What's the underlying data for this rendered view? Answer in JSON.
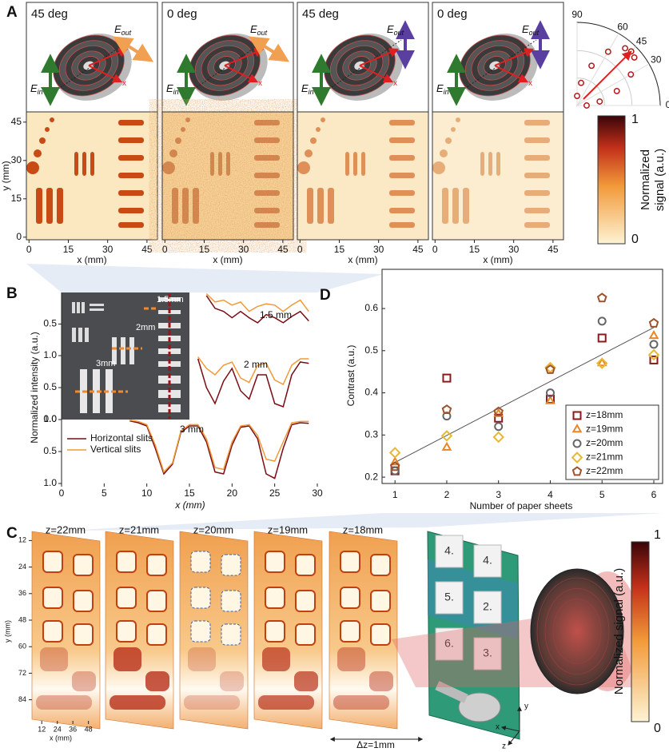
{
  "panel_labels": [
    "A",
    "B",
    "C",
    "D"
  ],
  "panel_a": {
    "maps": [
      {
        "label": "45 deg"
      },
      {
        "label": "0 deg"
      },
      {
        "label": "45 deg"
      },
      {
        "label": "0 deg"
      }
    ],
    "xlim": [
      -1,
      49
    ],
    "ylim": [
      -1,
      49
    ],
    "xticks": [
      0,
      15,
      30,
      45
    ],
    "yticks": [
      0,
      15,
      30,
      45
    ],
    "xlabel": "x (mm)",
    "ylabel": "y (mm)",
    "field": {
      "E": "E",
      "out": "out",
      "in": "in",
      "x": "x"
    },
    "colorbar": {
      "ticks": [
        0,
        1
      ],
      "label": [
        "Normalized",
        "signal (a.u.)"
      ]
    }
  },
  "panel_b": {
    "inset_labels": [
      "1.5mm",
      "2mm",
      "3mm"
    ]
  },
  "panel_c": {
    "slices": [
      "z=22mm",
      "z=21mm",
      "z=20mm",
      "z=19mm",
      "z=18mm"
    ],
    "yticks": [
      12,
      24,
      36,
      48,
      60,
      72,
      84
    ],
    "xticks": [
      12,
      24,
      36,
      48
    ],
    "ylim": [
      5,
      91
    ],
    "xlim": [
      2,
      55
    ],
    "xlabel": "x (mm)",
    "ylabel": "y (mm)",
    "dz": "Δz=1mm",
    "keys": [
      "4.",
      "4.",
      "5.",
      "2.",
      "6.",
      "3."
    ],
    "axes": [
      "x",
      "y",
      "z"
    ],
    "colorbar": {
      "ticks": [
        0,
        1
      ],
      "label": "Normalized signal (a.u.)"
    }
  },
  "chart_data": [
    {
      "type": "line",
      "title": "3 mm",
      "ylabel": "Normalized intensity (a.u.)",
      "xlabel": "x (mm)",
      "xlim": [
        0,
        30
      ],
      "xticks": [
        0,
        5,
        10,
        15,
        20,
        25,
        30
      ],
      "ylim": [
        0,
        1
      ],
      "yticks": [
        {
          "value": 0,
          "label": "0.0"
        },
        0.5,
        {
          "value": 1,
          "label": "1.0"
        }
      ],
      "x": [
        8,
        9,
        10,
        11,
        12,
        13,
        14,
        15,
        16,
        17,
        18,
        19,
        20,
        21,
        22,
        23,
        24,
        25,
        26,
        27,
        28,
        29
      ],
      "legend": "upper left",
      "series": [
        {
          "name": "Horizontal slits",
          "color": "#7a0c14",
          "values": [
            0.02,
            0.05,
            0.1,
            0.45,
            0.85,
            0.7,
            0.2,
            0.1,
            0.1,
            0.35,
            0.82,
            0.85,
            0.4,
            0.12,
            0.1,
            0.3,
            0.85,
            0.92,
            0.45,
            0.08,
            0.05,
            0.06
          ]
        },
        {
          "name": "Vertical slits",
          "color": "#f09a3a",
          "values": [
            0.01,
            0.03,
            0.08,
            0.4,
            0.82,
            0.68,
            0.18,
            0.08,
            0.08,
            0.3,
            0.75,
            0.78,
            0.35,
            0.1,
            0.08,
            0.25,
            0.62,
            0.65,
            0.35,
            0.05,
            0.03,
            0.03
          ]
        }
      ]
    },
    {
      "type": "line",
      "title": "2 mm",
      "xlim": [
        0,
        30
      ],
      "ylim": [
        0,
        1
      ],
      "yticks": [
        0.5,
        {
          "value": 1,
          "label": "1.0"
        }
      ],
      "x": [
        16,
        17,
        18,
        19,
        20,
        21,
        22,
        23,
        24,
        25,
        26,
        27,
        28,
        29
      ],
      "series": [
        {
          "color": "#7a0c14",
          "values": [
            0.05,
            0.5,
            0.75,
            0.4,
            0.2,
            0.55,
            0.68,
            0.3,
            0.3,
            0.75,
            0.8,
            0.3,
            0.1,
            0.12
          ]
        },
        {
          "color": "#f09a3a",
          "values": [
            0.02,
            0.2,
            0.3,
            0.15,
            0.1,
            0.35,
            0.42,
            0.15,
            0.12,
            0.38,
            0.45,
            0.15,
            0.05,
            0.05
          ]
        }
      ]
    },
    {
      "type": "line",
      "title": "1.5 mm",
      "xlim": [
        0,
        30
      ],
      "ylim": [
        0,
        1
      ],
      "yticks": [
        0.5,
        {
          "value": 1,
          "label": "1.0"
        }
      ],
      "x": [
        17,
        18,
        19,
        20,
        21,
        22,
        23,
        24,
        25,
        26,
        27,
        28,
        29
      ],
      "series": [
        {
          "color": "#7a0c14",
          "values": [
            0.05,
            0.25,
            0.3,
            0.4,
            0.3,
            0.4,
            0.48,
            0.35,
            0.4,
            0.48,
            0.38,
            0.3,
            0.45
          ]
        },
        {
          "color": "#f09a3a",
          "values": [
            0.02,
            0.15,
            0.12,
            0.2,
            0.15,
            0.3,
            0.22,
            0.18,
            0.2,
            0.3,
            0.2,
            0.12,
            0.3
          ]
        }
      ]
    },
    {
      "type": "scatter",
      "xlabel": "Number of paper sheets",
      "ylabel": "Contrast (a.u.)",
      "xlim": [
        0.75,
        6.17
      ],
      "xticks": [
        1,
        2,
        3,
        4,
        5,
        6
      ],
      "ylim": [
        0.185,
        0.693
      ],
      "yticks": [
        0.2,
        0.3,
        0.4,
        0.5,
        0.6
      ],
      "x": [
        1,
        2,
        3,
        4,
        5,
        6
      ],
      "legend": "lower right",
      "series": [
        {
          "name": "z=18mm",
          "color": "#8b1a1a",
          "marker": "square",
          "values": [
            0.215,
            0.435,
            0.34,
            0.385,
            0.53,
            0.478
          ]
        },
        {
          "name": "z=19mm",
          "color": "#e8862a",
          "marker": "triangle",
          "values": [
            0.235,
            0.27,
            0.35,
            0.38,
            0.47,
            0.535
          ]
        },
        {
          "name": "z=20mm",
          "color": "#666666",
          "marker": "circle",
          "values": [
            0.215,
            0.345,
            0.32,
            0.4,
            0.57,
            0.515
          ]
        },
        {
          "name": "z=21mm",
          "color": "#e8b830",
          "marker": "diamond",
          "values": [
            0.258,
            0.298,
            0.295,
            0.46,
            0.47,
            0.49
          ]
        },
        {
          "name": "z=22mm",
          "color": "#a0522d",
          "marker": "pentagon",
          "values": [
            0.225,
            0.36,
            0.355,
            0.455,
            0.625,
            0.565
          ]
        }
      ],
      "fit": {
        "x": [
          1,
          6
        ],
        "y": [
          0.235,
          0.555
        ],
        "color": "#555555"
      }
    },
    {
      "type": "polar",
      "rticks": [
        0,
        30,
        45,
        60,
        90
      ],
      "theta": [
        0,
        10,
        20,
        30,
        40,
        45,
        50,
        60,
        70,
        80,
        90
      ],
      "r": [
        0.125,
        0.3,
        0.553,
        0.812,
        0.977,
        1,
        0.977,
        0.812,
        0.553,
        0.3,
        0.125
      ],
      "color": "#b01a1a"
    }
  ]
}
